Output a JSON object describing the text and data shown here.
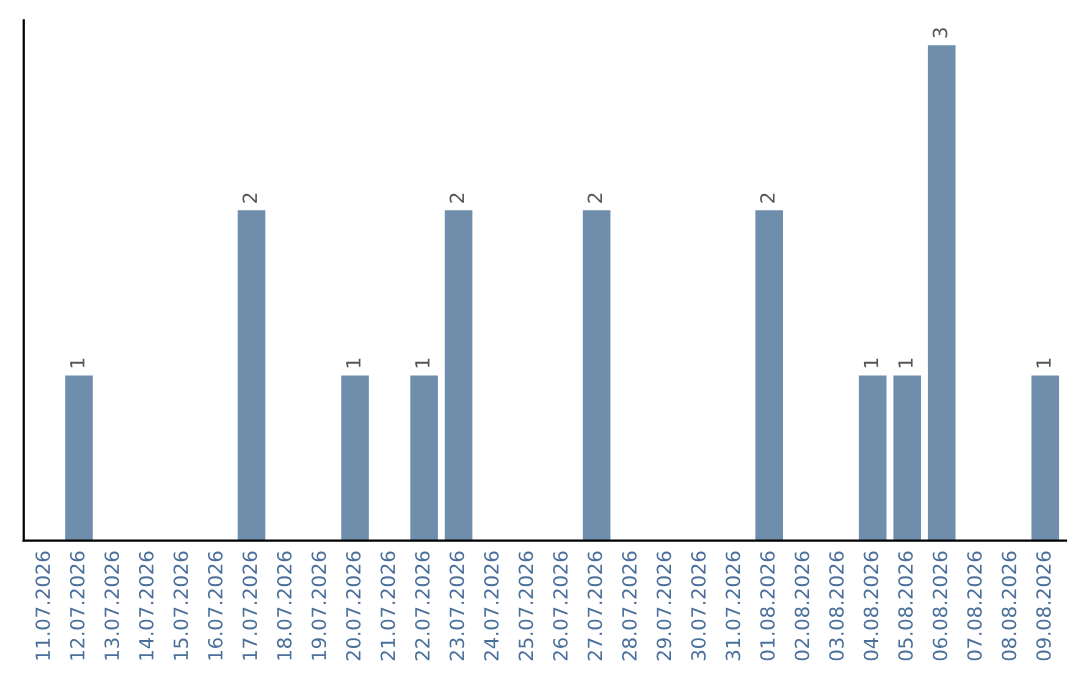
{
  "chart_data": {
    "type": "bar",
    "categories": [
      "11.07.2026",
      "12.07.2026",
      "13.07.2026",
      "14.07.2026",
      "15.07.2026",
      "16.07.2026",
      "17.07.2026",
      "18.07.2026",
      "19.07.2026",
      "20.07.2026",
      "21.07.2026",
      "22.07.2026",
      "23.07.2026",
      "24.07.2026",
      "25.07.2026",
      "26.07.2026",
      "27.07.2026",
      "28.07.2026",
      "29.07.2026",
      "30.07.2026",
      "31.07.2026",
      "01.08.2026",
      "02.08.2026",
      "03.08.2026",
      "04.08.2026",
      "05.08.2026",
      "06.08.2026",
      "07.08.2026",
      "08.08.2026",
      "09.08.2026"
    ],
    "values": [
      null,
      1,
      null,
      null,
      null,
      null,
      2,
      null,
      null,
      1,
      null,
      1,
      2,
      null,
      null,
      null,
      2,
      null,
      null,
      null,
      null,
      2,
      null,
      null,
      1,
      1,
      3,
      null,
      null,
      1
    ],
    "color": "#6e8eac",
    "data_labels": true,
    "tick_labels": "x",
    "grid": false,
    "legend": false
  }
}
